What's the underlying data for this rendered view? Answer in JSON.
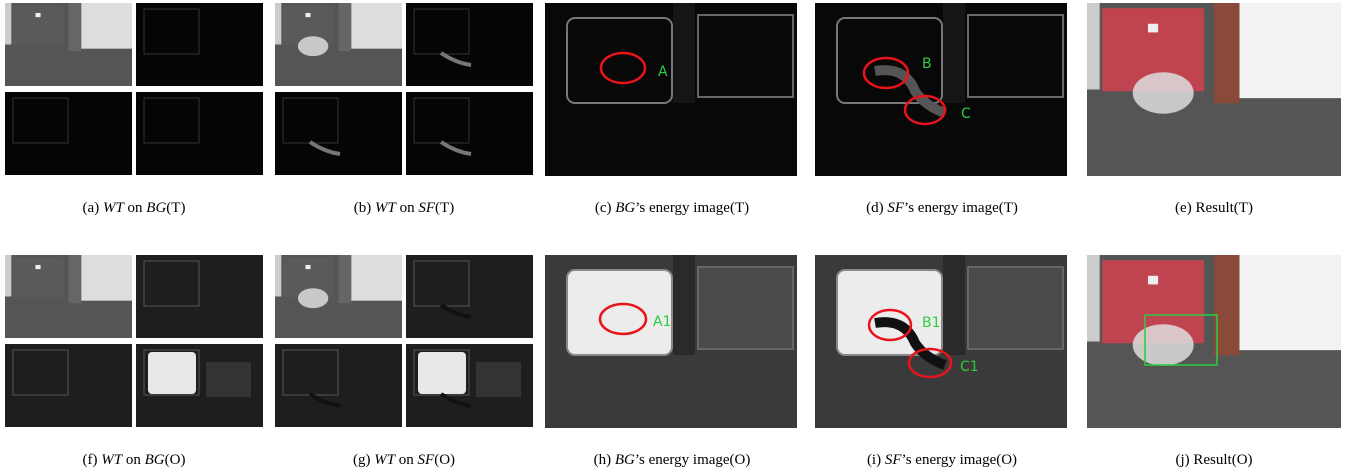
{
  "figure": {
    "panels": [
      {
        "caption": [
          "(a) ",
          "WT",
          " on ",
          "BG",
          "(T)"
        ]
      },
      {
        "caption": [
          "(b) ",
          "WT",
          " on ",
          "SF",
          "(T)"
        ]
      },
      {
        "caption": [
          "(c) ",
          "BG",
          "’s energy image(T)"
        ],
        "annotations": [
          "A"
        ]
      },
      {
        "caption": [
          "(d) ",
          "SF",
          "’s energy image(T)"
        ],
        "annotations": [
          "B",
          "C"
        ]
      },
      {
        "caption": [
          "(e) Result(T)"
        ]
      },
      {
        "caption": [
          "(f) ",
          "WT",
          " on ",
          "BG",
          "(O)"
        ]
      },
      {
        "caption": [
          "(g) ",
          "WT",
          " on ",
          "SF",
          "(O)"
        ]
      },
      {
        "caption": [
          "(h) ",
          "BG",
          "’s energy image(O)"
        ],
        "annotations": [
          "A1"
        ]
      },
      {
        "caption": [
          "(i) ",
          "SF",
          "’s energy image(O)"
        ],
        "annotations": [
          "B1",
          "C1"
        ]
      },
      {
        "caption": [
          "(j) Result(O)"
        ]
      }
    ]
  }
}
